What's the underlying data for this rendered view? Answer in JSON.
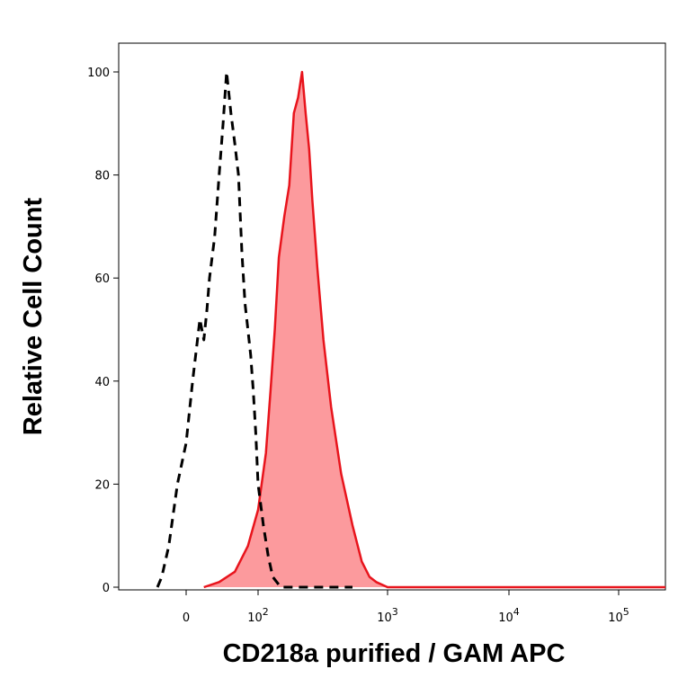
{
  "chart_data": {
    "type": "area",
    "title": "",
    "xlabel": "CD218a purified / GAM APC",
    "ylabel": "Relative Cell Count",
    "x_scale": "biexponential",
    "xlim": [
      -100,
      200000
    ],
    "ylim": [
      0,
      100
    ],
    "x_ticks": [
      {
        "value": 0,
        "base": "0",
        "exp": ""
      },
      {
        "value": 100,
        "base": "10",
        "exp": "2"
      },
      {
        "value": 1000,
        "base": "10",
        "exp": "3"
      },
      {
        "value": 10000,
        "base": "10",
        "exp": "4"
      },
      {
        "value": 100000,
        "base": "10",
        "exp": "5"
      }
    ],
    "y_ticks": [
      0,
      20,
      40,
      60,
      80,
      100
    ],
    "grid": false,
    "series": [
      {
        "style": "dashed",
        "color": "#000000",
        "x": [
          -35,
          -28,
          -20,
          -10,
          0,
          8,
          15,
          20,
          25,
          30,
          35,
          40,
          45,
          50,
          55,
          60,
          65,
          70,
          75,
          80,
          85,
          90,
          95,
          100,
          110,
          120,
          130,
          150,
          180,
          220,
          300,
          500
        ],
        "y": [
          0,
          2,
          8,
          20,
          28,
          40,
          52,
          48,
          54,
          60,
          68,
          80,
          90,
          100,
          92,
          86,
          80,
          65,
          55,
          50,
          45,
          38,
          30,
          20,
          12,
          6,
          2,
          0,
          0,
          0,
          0,
          0
        ]
      },
      {
        "style": "filled",
        "color": "#e8141c",
        "fill": "#fc9a9d",
        "x": [
          20,
          40,
          60,
          80,
          100,
          115,
          125,
          135,
          145,
          160,
          175,
          190,
          205,
          220,
          235,
          250,
          265,
          290,
          320,
          360,
          420,
          500,
          600,
          700,
          800,
          1000,
          10000,
          200000
        ],
        "y": [
          0,
          1,
          3,
          8,
          15,
          26,
          38,
          50,
          64,
          72,
          78,
          92,
          95,
          100,
          92,
          85,
          75,
          62,
          48,
          35,
          22,
          12,
          5,
          2,
          1,
          0,
          0,
          0
        ]
      }
    ]
  }
}
